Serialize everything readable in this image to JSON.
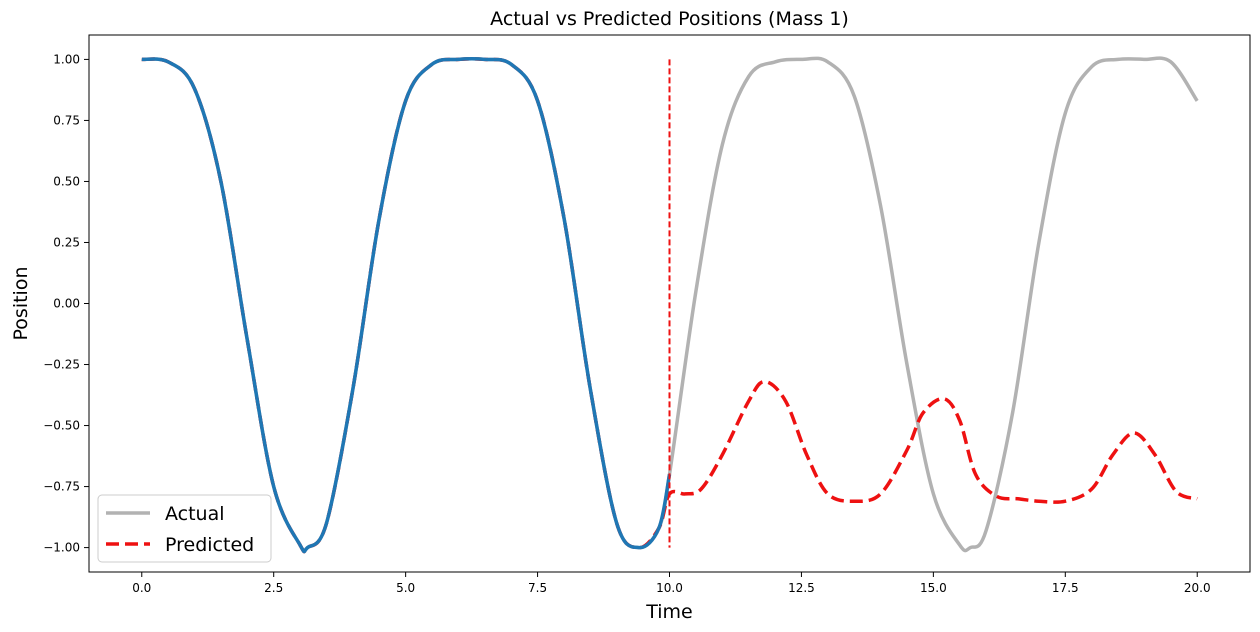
{
  "chart_data": {
    "type": "line",
    "title": "Actual vs Predicted Positions (Mass 1)",
    "xlabel": "Time",
    "ylabel": "Position",
    "xlim": [
      -1,
      21
    ],
    "ylim": [
      -1.1,
      1.1
    ],
    "xticks": [
      0.0,
      2.5,
      5.0,
      7.5,
      10.0,
      12.5,
      15.0,
      17.5,
      20.0
    ],
    "xtick_labels": [
      "0.0",
      "2.5",
      "5.0",
      "7.5",
      "10.0",
      "12.5",
      "15.0",
      "17.5",
      "20.0"
    ],
    "yticks": [
      1.0,
      0.75,
      0.5,
      0.25,
      0.0,
      -0.25,
      -0.5,
      -0.75,
      -1.0
    ],
    "ytick_labels": [
      "1.00",
      "0.75",
      "0.50",
      "0.25",
      "0.00",
      "−0.25",
      "−0.50",
      "−0.75",
      "−1.00"
    ],
    "grid": false,
    "legend_position": "lower-left",
    "colors": {
      "actual": "#b2b2b2",
      "predicted": "#ee1111",
      "training": "#1f77b4",
      "split_line": "#ee1111"
    },
    "series": [
      {
        "name": "Actual",
        "style": "solid",
        "x": [
          0,
          0.5,
          1,
          1.5,
          2,
          2.5,
          3,
          3.14,
          3.5,
          4,
          4.5,
          5,
          5.5,
          6,
          6.5,
          7,
          7.5,
          8,
          8.5,
          9,
          9.42,
          9.8,
          10,
          10.5,
          11,
          11.5,
          12,
          12.5,
          13,
          13.5,
          14,
          14.5,
          15,
          15.5,
          15.7,
          16,
          16.5,
          17,
          17.5,
          18,
          18.5,
          19,
          19.5,
          20
        ],
        "y": [
          1.0,
          0.99,
          0.88,
          0.5,
          -0.15,
          -0.75,
          -0.99,
          -1.0,
          -0.9,
          -0.35,
          0.35,
          0.83,
          0.98,
          1.0,
          1.0,
          0.98,
          0.83,
          0.35,
          -0.35,
          -0.9,
          -1.0,
          -0.92,
          -0.7,
          0.05,
          0.65,
          0.93,
          0.99,
          1.0,
          0.99,
          0.85,
          0.4,
          -0.25,
          -0.78,
          -0.99,
          -1.0,
          -0.93,
          -0.45,
          0.25,
          0.78,
          0.97,
          1.0,
          1.0,
          0.99,
          0.83
        ]
      },
      {
        "name": "Predicted",
        "style": "dashed",
        "x": [
          0,
          0.5,
          1,
          1.5,
          2,
          2.5,
          3,
          3.14,
          3.5,
          4,
          4.5,
          5,
          5.5,
          6,
          6.5,
          7,
          7.5,
          8,
          8.5,
          9,
          9.42,
          9.8,
          10,
          10.3,
          10.6,
          11,
          11.5,
          11.8,
          12.2,
          12.6,
          13,
          13.5,
          14,
          14.5,
          14.8,
          15.2,
          15.5,
          15.8,
          16.2,
          16.6,
          17,
          17.5,
          18,
          18.4,
          18.8,
          19.2,
          19.6,
          20
        ],
        "y": [
          1.0,
          0.99,
          0.88,
          0.5,
          -0.15,
          -0.75,
          -0.99,
          -1.0,
          -0.9,
          -0.35,
          0.35,
          0.83,
          0.98,
          1.0,
          1.0,
          0.98,
          0.83,
          0.35,
          -0.35,
          -0.9,
          -1.0,
          -0.92,
          -0.78,
          -0.78,
          -0.76,
          -0.62,
          -0.4,
          -0.32,
          -0.4,
          -0.62,
          -0.78,
          -0.81,
          -0.78,
          -0.6,
          -0.45,
          -0.39,
          -0.48,
          -0.7,
          -0.79,
          -0.8,
          -0.81,
          -0.81,
          -0.76,
          -0.62,
          -0.53,
          -0.62,
          -0.77,
          -0.8
        ]
      },
      {
        "name": "",
        "style": "solid-training",
        "x": [
          0,
          0.5,
          1,
          1.5,
          2,
          2.5,
          3,
          3.14,
          3.5,
          4,
          4.5,
          5,
          5.5,
          6,
          6.5,
          7,
          7.5,
          8,
          8.5,
          9,
          9.42,
          9.8,
          10
        ],
        "y": [
          1.0,
          0.99,
          0.88,
          0.5,
          -0.15,
          -0.75,
          -0.99,
          -1.0,
          -0.9,
          -0.35,
          0.35,
          0.83,
          0.98,
          1.0,
          1.0,
          0.98,
          0.83,
          0.35,
          -0.35,
          -0.9,
          -1.0,
          -0.92,
          -0.7
        ]
      }
    ],
    "split_line": {
      "x": 10.0,
      "y_range": [
        -1.0,
        1.0
      ],
      "style": "dashed"
    }
  }
}
